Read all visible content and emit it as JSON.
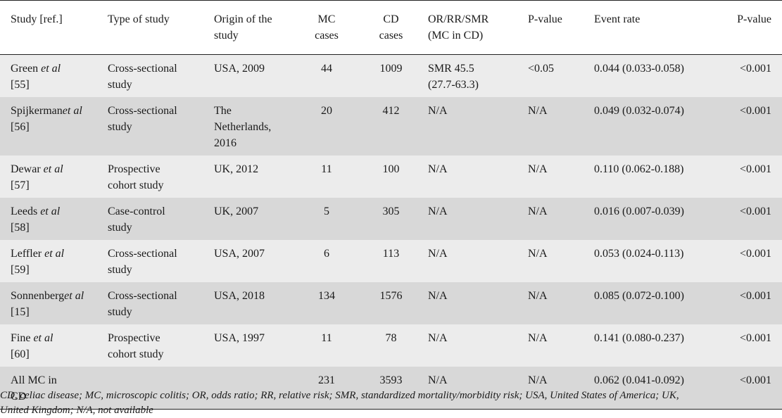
{
  "table": {
    "headers": {
      "study": "Study [ref.]",
      "type": "Type of study",
      "origin_line1": "Origin of the",
      "origin_line2": "study",
      "mc_line1": "MC",
      "mc_line2": "cases",
      "cd_line1": "CD",
      "cd_line2": "cases",
      "or_line1": "OR/RR/SMR",
      "or_line2": "(MC in CD)",
      "p1": "P-value",
      "event": "Event rate",
      "p2": "P-value"
    },
    "rows": [
      {
        "study_a": "Green ",
        "study_etal": "et al",
        "study_b": "",
        "study_ref": "[55]",
        "type_1": "Cross-sectional",
        "type_2": "study",
        "origin_1": "USA, 2009",
        "origin_2": "",
        "origin_3": "",
        "mc": "44",
        "cd": "1009",
        "or_1": "SMR 45.5",
        "or_2": "(27.7-63.3)",
        "p1": "<0.05",
        "event": "0.044 (0.033-0.058)",
        "p2": "<0.001"
      },
      {
        "study_a": "Spijkerman",
        "study_etal": "et al",
        "study_b": "",
        "study_ref": "[56]",
        "type_1": "Cross-sectional",
        "type_2": "study",
        "origin_1": "The",
        "origin_2": "Netherlands,",
        "origin_3": "2016",
        "mc": "20",
        "cd": "412",
        "or_1": "N/A",
        "or_2": "",
        "p1": "N/A",
        "event": "0.049 (0.032-0.074)",
        "p2": "<0.001"
      },
      {
        "study_a": "Dewar ",
        "study_etal": "et al",
        "study_b": "",
        "study_ref": "[57]",
        "type_1": "Prospective",
        "type_2": "cohort study",
        "origin_1": "UK, 2012",
        "origin_2": "",
        "origin_3": "",
        "mc": "11",
        "cd": "100",
        "or_1": "N/A",
        "or_2": "",
        "p1": "N/A",
        "event": "0.110 (0.062-0.188)",
        "p2": "<0.001"
      },
      {
        "study_a": "Leeds ",
        "study_etal": "et al",
        "study_b": "",
        "study_ref": "[58]",
        "type_1": "Case-control",
        "type_2": "study",
        "origin_1": "UK, 2007",
        "origin_2": "",
        "origin_3": "",
        "mc": "5",
        "cd": "305",
        "or_1": "N/A",
        "or_2": "",
        "p1": "N/A",
        "event": "0.016 (0.007-0.039)",
        "p2": "<0.001"
      },
      {
        "study_a": "Leffler ",
        "study_etal": "et al",
        "study_b": "",
        "study_ref": "[59]",
        "type_1": "Cross-sectional",
        "type_2": "study",
        "origin_1": "USA, 2007",
        "origin_2": "",
        "origin_3": "",
        "mc": "6",
        "cd": "113",
        "or_1": "N/A",
        "or_2": "",
        "p1": "N/A",
        "event": "0.053 (0.024-0.113)",
        "p2": "<0.001"
      },
      {
        "study_a": "Sonnenberg",
        "study_etal": "et al",
        "study_b": "",
        "study_ref": "[15]",
        "type_1": "Cross-sectional",
        "type_2": "study",
        "origin_1": "USA, 2018",
        "origin_2": "",
        "origin_3": "",
        "mc": "134",
        "cd": "1576",
        "or_1": "N/A",
        "or_2": "",
        "p1": "N/A",
        "event": "0.085 (0.072-0.100)",
        "p2": "<0.001"
      },
      {
        "study_a": "Fine ",
        "study_etal": "et al",
        "study_b": "",
        "study_ref": "[60]",
        "type_1": "Prospective",
        "type_2": "cohort study",
        "origin_1": "USA, 1997",
        "origin_2": "",
        "origin_3": "",
        "mc": "11",
        "cd": "78",
        "or_1": "N/A",
        "or_2": "",
        "p1": "N/A",
        "event": "0.141 (0.080-0.237)",
        "p2": "<0.001"
      },
      {
        "study_a": "All MC in",
        "study_etal": "",
        "study_b": "",
        "study_ref": "CD",
        "type_1": "",
        "type_2": "",
        "origin_1": "",
        "origin_2": "",
        "origin_3": "",
        "mc": "231",
        "cd": "3593",
        "or_1": "N/A",
        "or_2": "",
        "p1": "N/A",
        "event": "0.062 (0.041-0.092)",
        "p2": "<0.001"
      }
    ]
  },
  "footnote": {
    "line1": "CD, celiac disease; MC, microscopic colitis; OR, odds ratio; RR, relative risk; SMR, standardized mortality/morbidity risk; USA, United States of America; UK,",
    "line2": "United Kingdom; N/A, not available"
  }
}
